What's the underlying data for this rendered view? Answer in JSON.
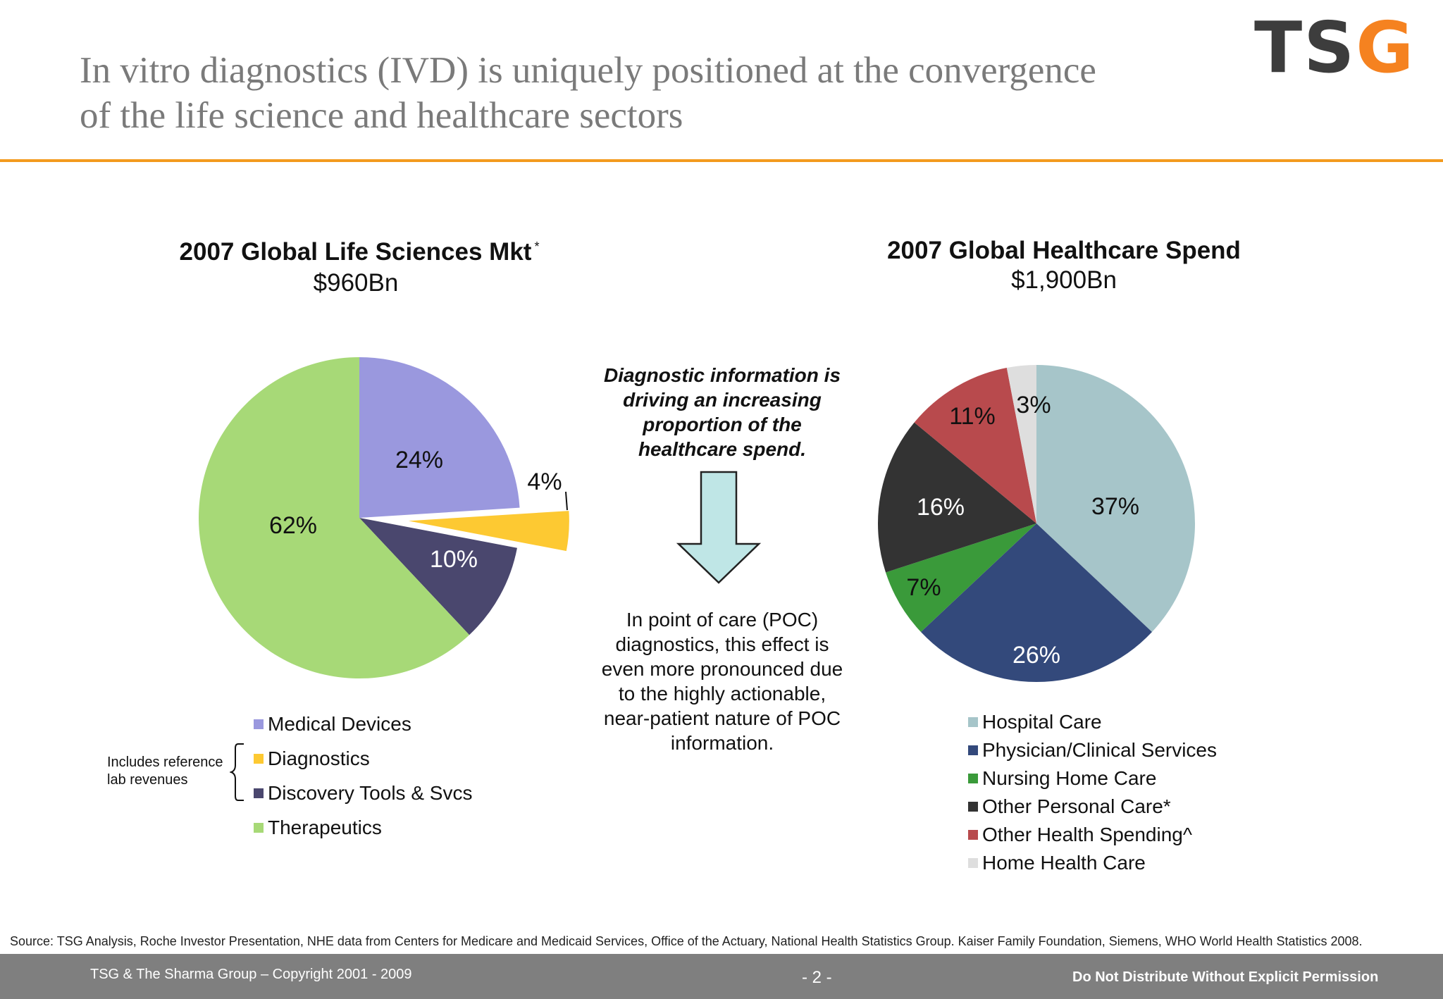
{
  "header": {
    "title_line1": "In vitro diagnostics (IVD) is uniquely positioned at the convergence",
    "title_line2": "of the life science and healthcare sectors",
    "logo_left": "TS",
    "logo_accent": "G",
    "colors": {
      "rule": "#f39a1e",
      "logo": "#3d3d3d",
      "logo_accent": "#f58220"
    }
  },
  "center": {
    "callout_line1": "Diagnostic information is",
    "callout_line2": "driving an increasing",
    "callout_line3": "proportion of the",
    "callout_line4": "healthcare spend.",
    "poc_line1": "In point of care (POC)",
    "poc_line2": "diagnostics, this effect is",
    "poc_line3": "even more pronounced due",
    "poc_line4": "to the highly actionable,",
    "poc_line5": "near-patient nature of POC",
    "poc_line6": "information."
  },
  "bracket_note": {
    "line1": "Includes reference",
    "line2": "lab revenues"
  },
  "chart_data": [
    {
      "type": "pie",
      "title": "2007 Global Life Sciences Mkt",
      "title_marker": "*",
      "subtitle": "$960Bn",
      "categories": [
        "Medical Devices",
        "Diagnostics",
        "Discovery Tools & Svcs",
        "Therapeutics"
      ],
      "values": [
        24,
        4,
        10,
        62
      ],
      "labels": [
        "24%",
        "4%",
        "10%",
        "62%"
      ],
      "colors": [
        "#9a98de",
        "#fdc932",
        "#4a476e",
        "#a7d977"
      ],
      "label_colors": [
        "#111111",
        "#111111",
        "#ffffff",
        "#111111"
      ],
      "exploded": "Diagnostics",
      "legend": "bottom"
    },
    {
      "type": "pie",
      "title": "2007 Global Healthcare Spend",
      "subtitle": "$1,900Bn",
      "categories": [
        "Hospital Care",
        "Physician/Clinical Services",
        "Nursing Home Care",
        "Other Personal Care*",
        "Other Health Spending^",
        "Home Health Care"
      ],
      "values": [
        37,
        26,
        7,
        16,
        11,
        3
      ],
      "labels": [
        "37%",
        "26%",
        "7%",
        "16%",
        "11%",
        "3%"
      ],
      "colors": [
        "#a6c5c9",
        "#33497b",
        "#3a9a3a",
        "#333333",
        "#b84a4d",
        "#dedede"
      ],
      "label_colors": [
        "#111111",
        "#ffffff",
        "#111111",
        "#ffffff",
        "#111111",
        "#111111"
      ],
      "legend": "bottom"
    }
  ],
  "source": "Source: TSG Analysis, Roche Investor Presentation, NHE data from Centers for Medicare and Medicaid Services, Office of the Actuary, National Health Statistics Group.  Kaiser Family Foundation, Siemens, WHO World Health Statistics 2008.",
  "footer": {
    "copyright": "TSG & The Sharma Group – Copyright 2001 - 2009",
    "page": "- 2 -",
    "notice": "Do Not Distribute Without Explicit Permission",
    "bar_color": "#7f7f7f"
  }
}
